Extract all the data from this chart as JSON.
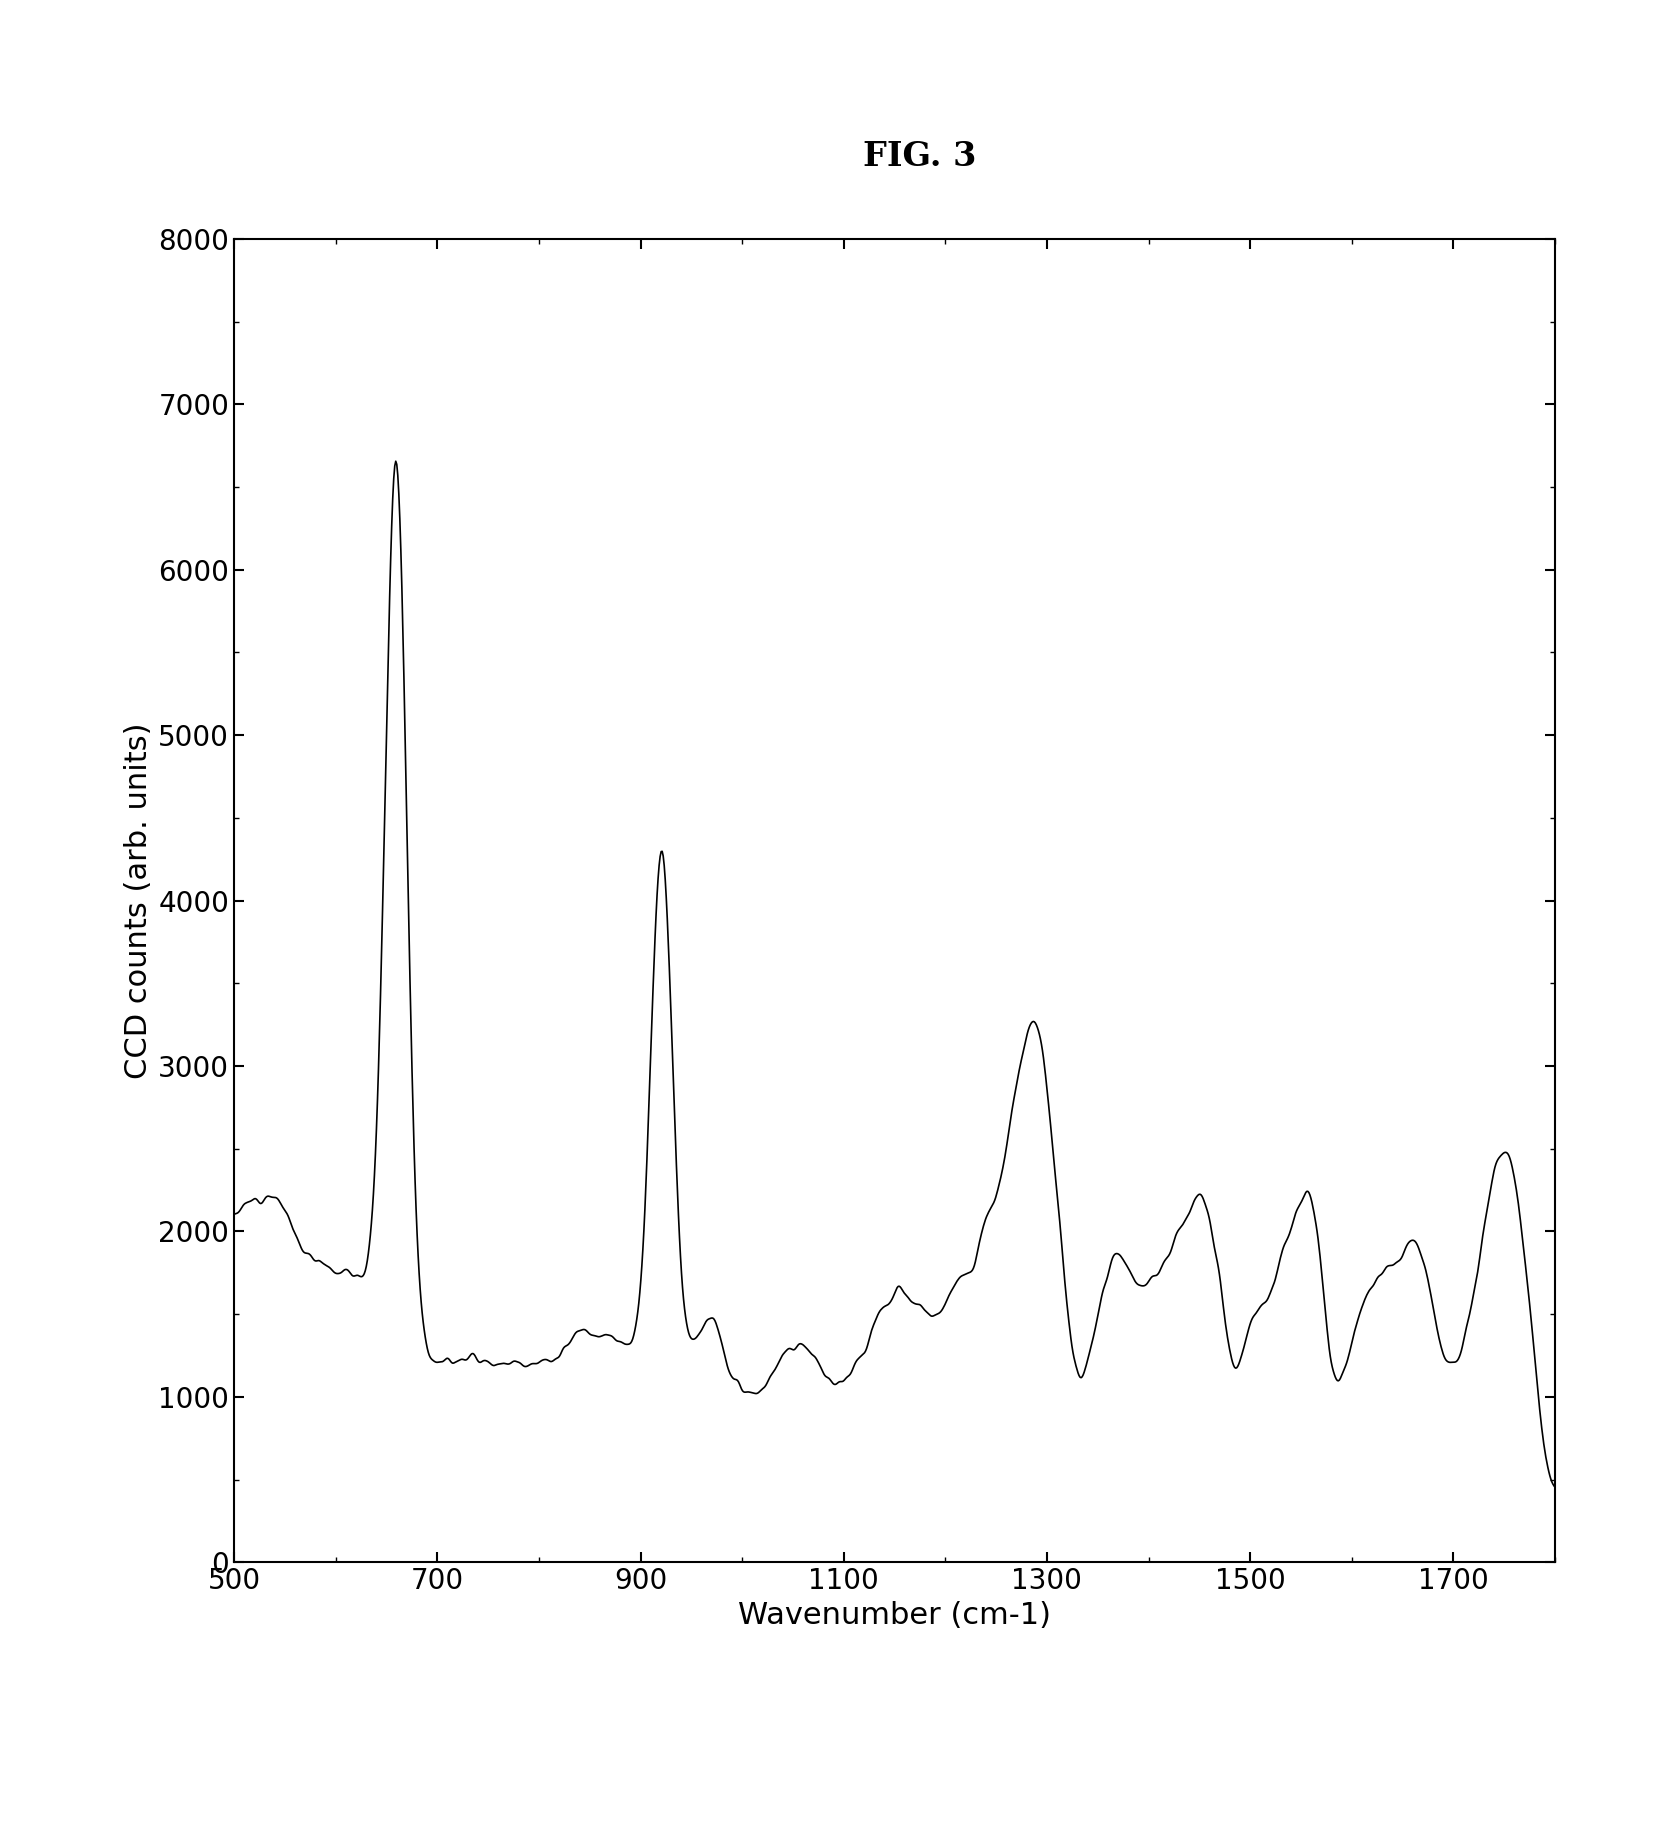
{
  "title": "FIG. 3",
  "xlabel": "Wavenumber (cm-1)",
  "ylabel": "CCD counts (arb. units)",
  "xlim": [
    500,
    1800
  ],
  "ylim": [
    0,
    8000
  ],
  "xticks": [
    500,
    700,
    900,
    1100,
    1300,
    1500,
    1700
  ],
  "yticks": [
    0,
    1000,
    2000,
    3000,
    4000,
    5000,
    6000,
    7000,
    8000
  ],
  "line_color": "#000000",
  "background_color": "#ffffff",
  "title_fontsize": 24,
  "label_fontsize": 22,
  "tick_fontsize": 20
}
